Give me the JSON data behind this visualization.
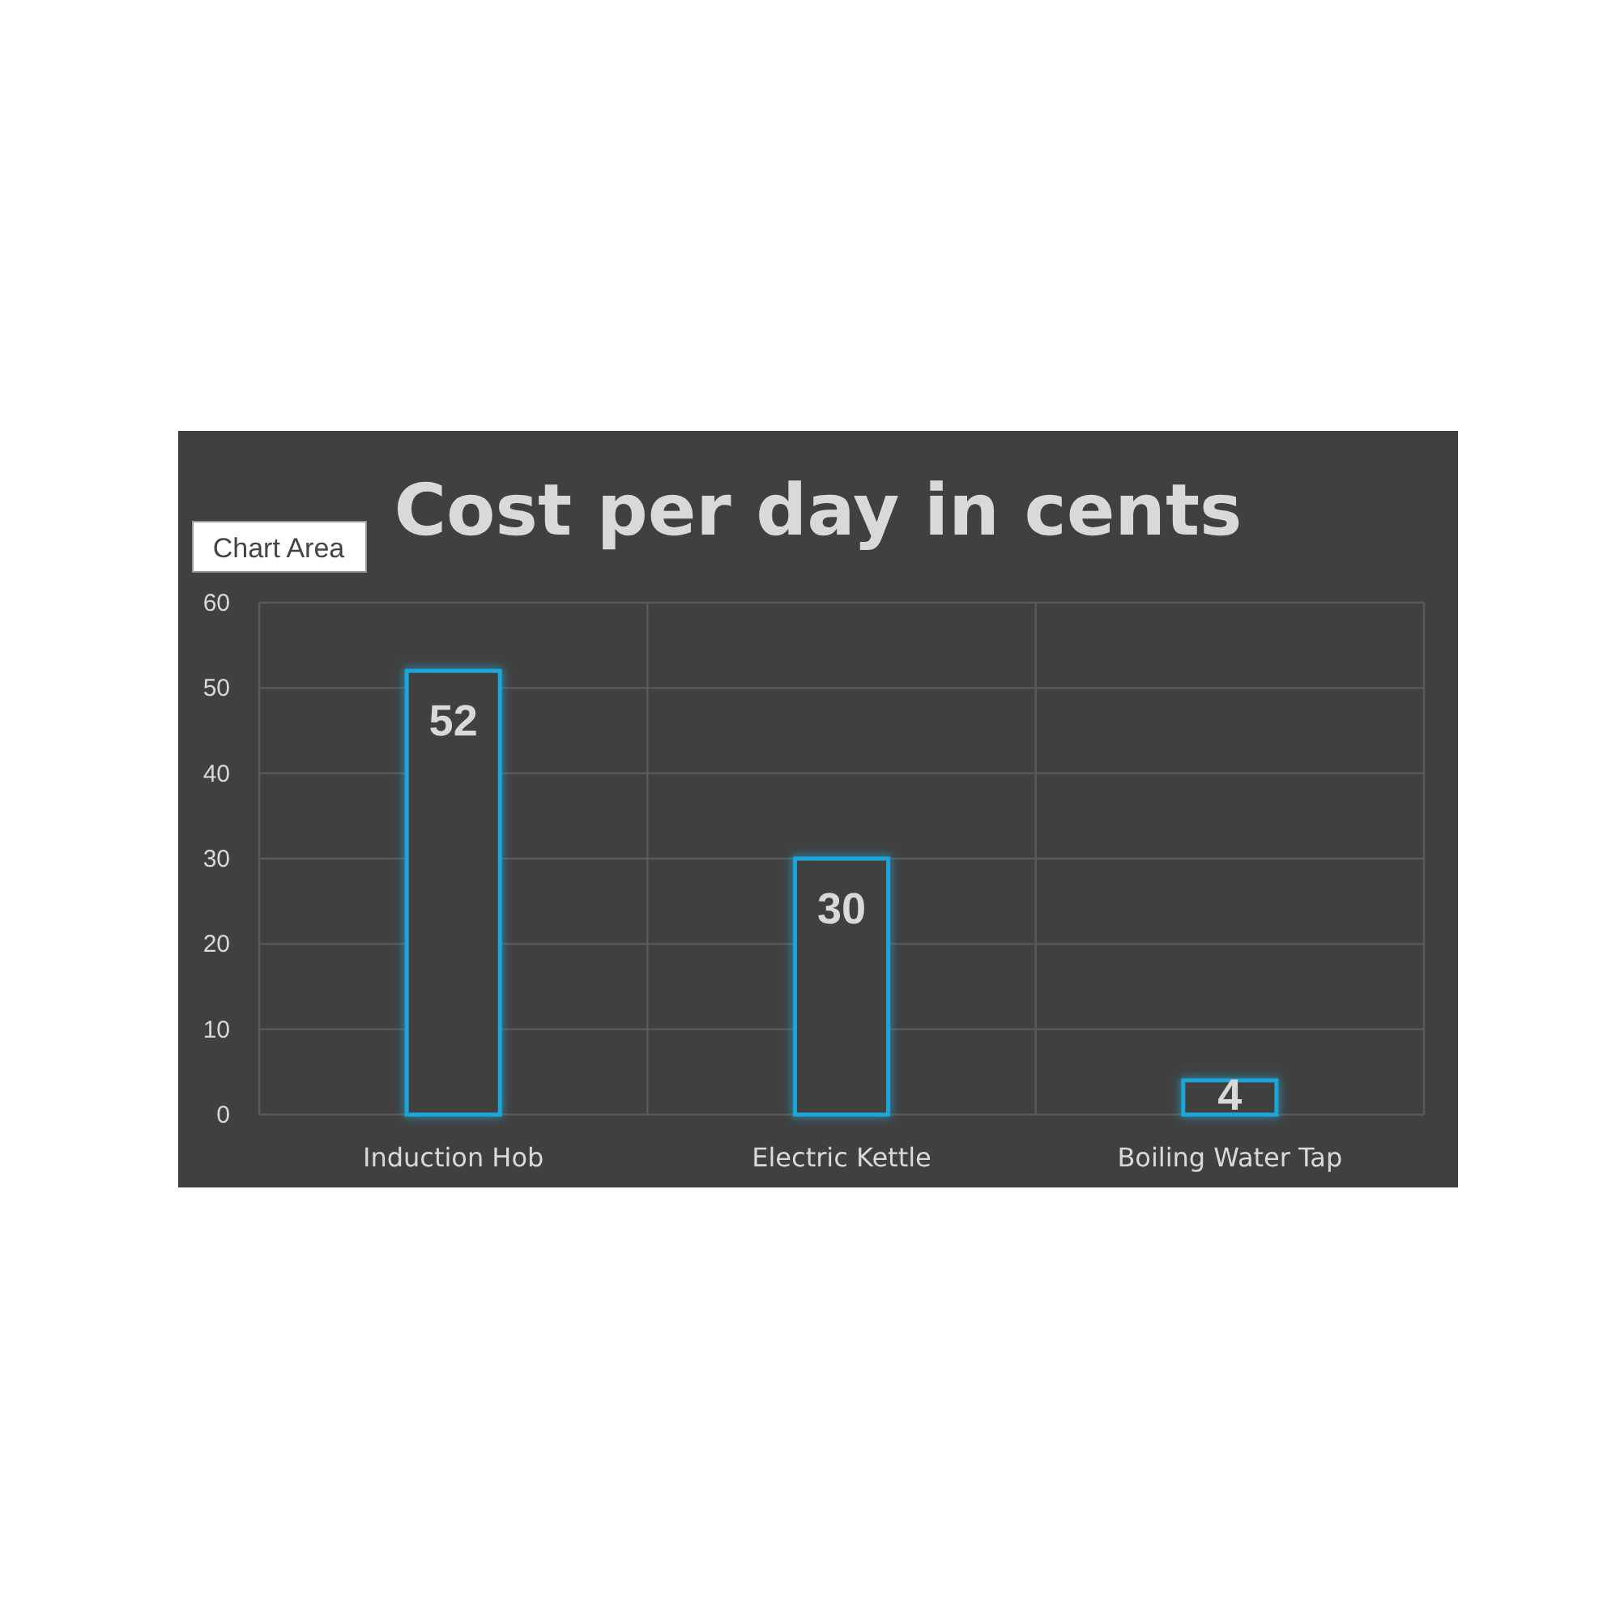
{
  "chart_data": {
    "type": "bar",
    "title": "Cost per day in cents",
    "categories": [
      "Induction Hob",
      "Electric Kettle",
      "Boiling Water Tap"
    ],
    "values": [
      52,
      30,
      4
    ],
    "color": "#1ea5d8",
    "ylim": [
      0,
      60
    ],
    "yticks": [
      0,
      10,
      20,
      30,
      40,
      50,
      60
    ],
    "grid": true,
    "data_labels": true,
    "annotations": [
      "Chart Area"
    ]
  }
}
